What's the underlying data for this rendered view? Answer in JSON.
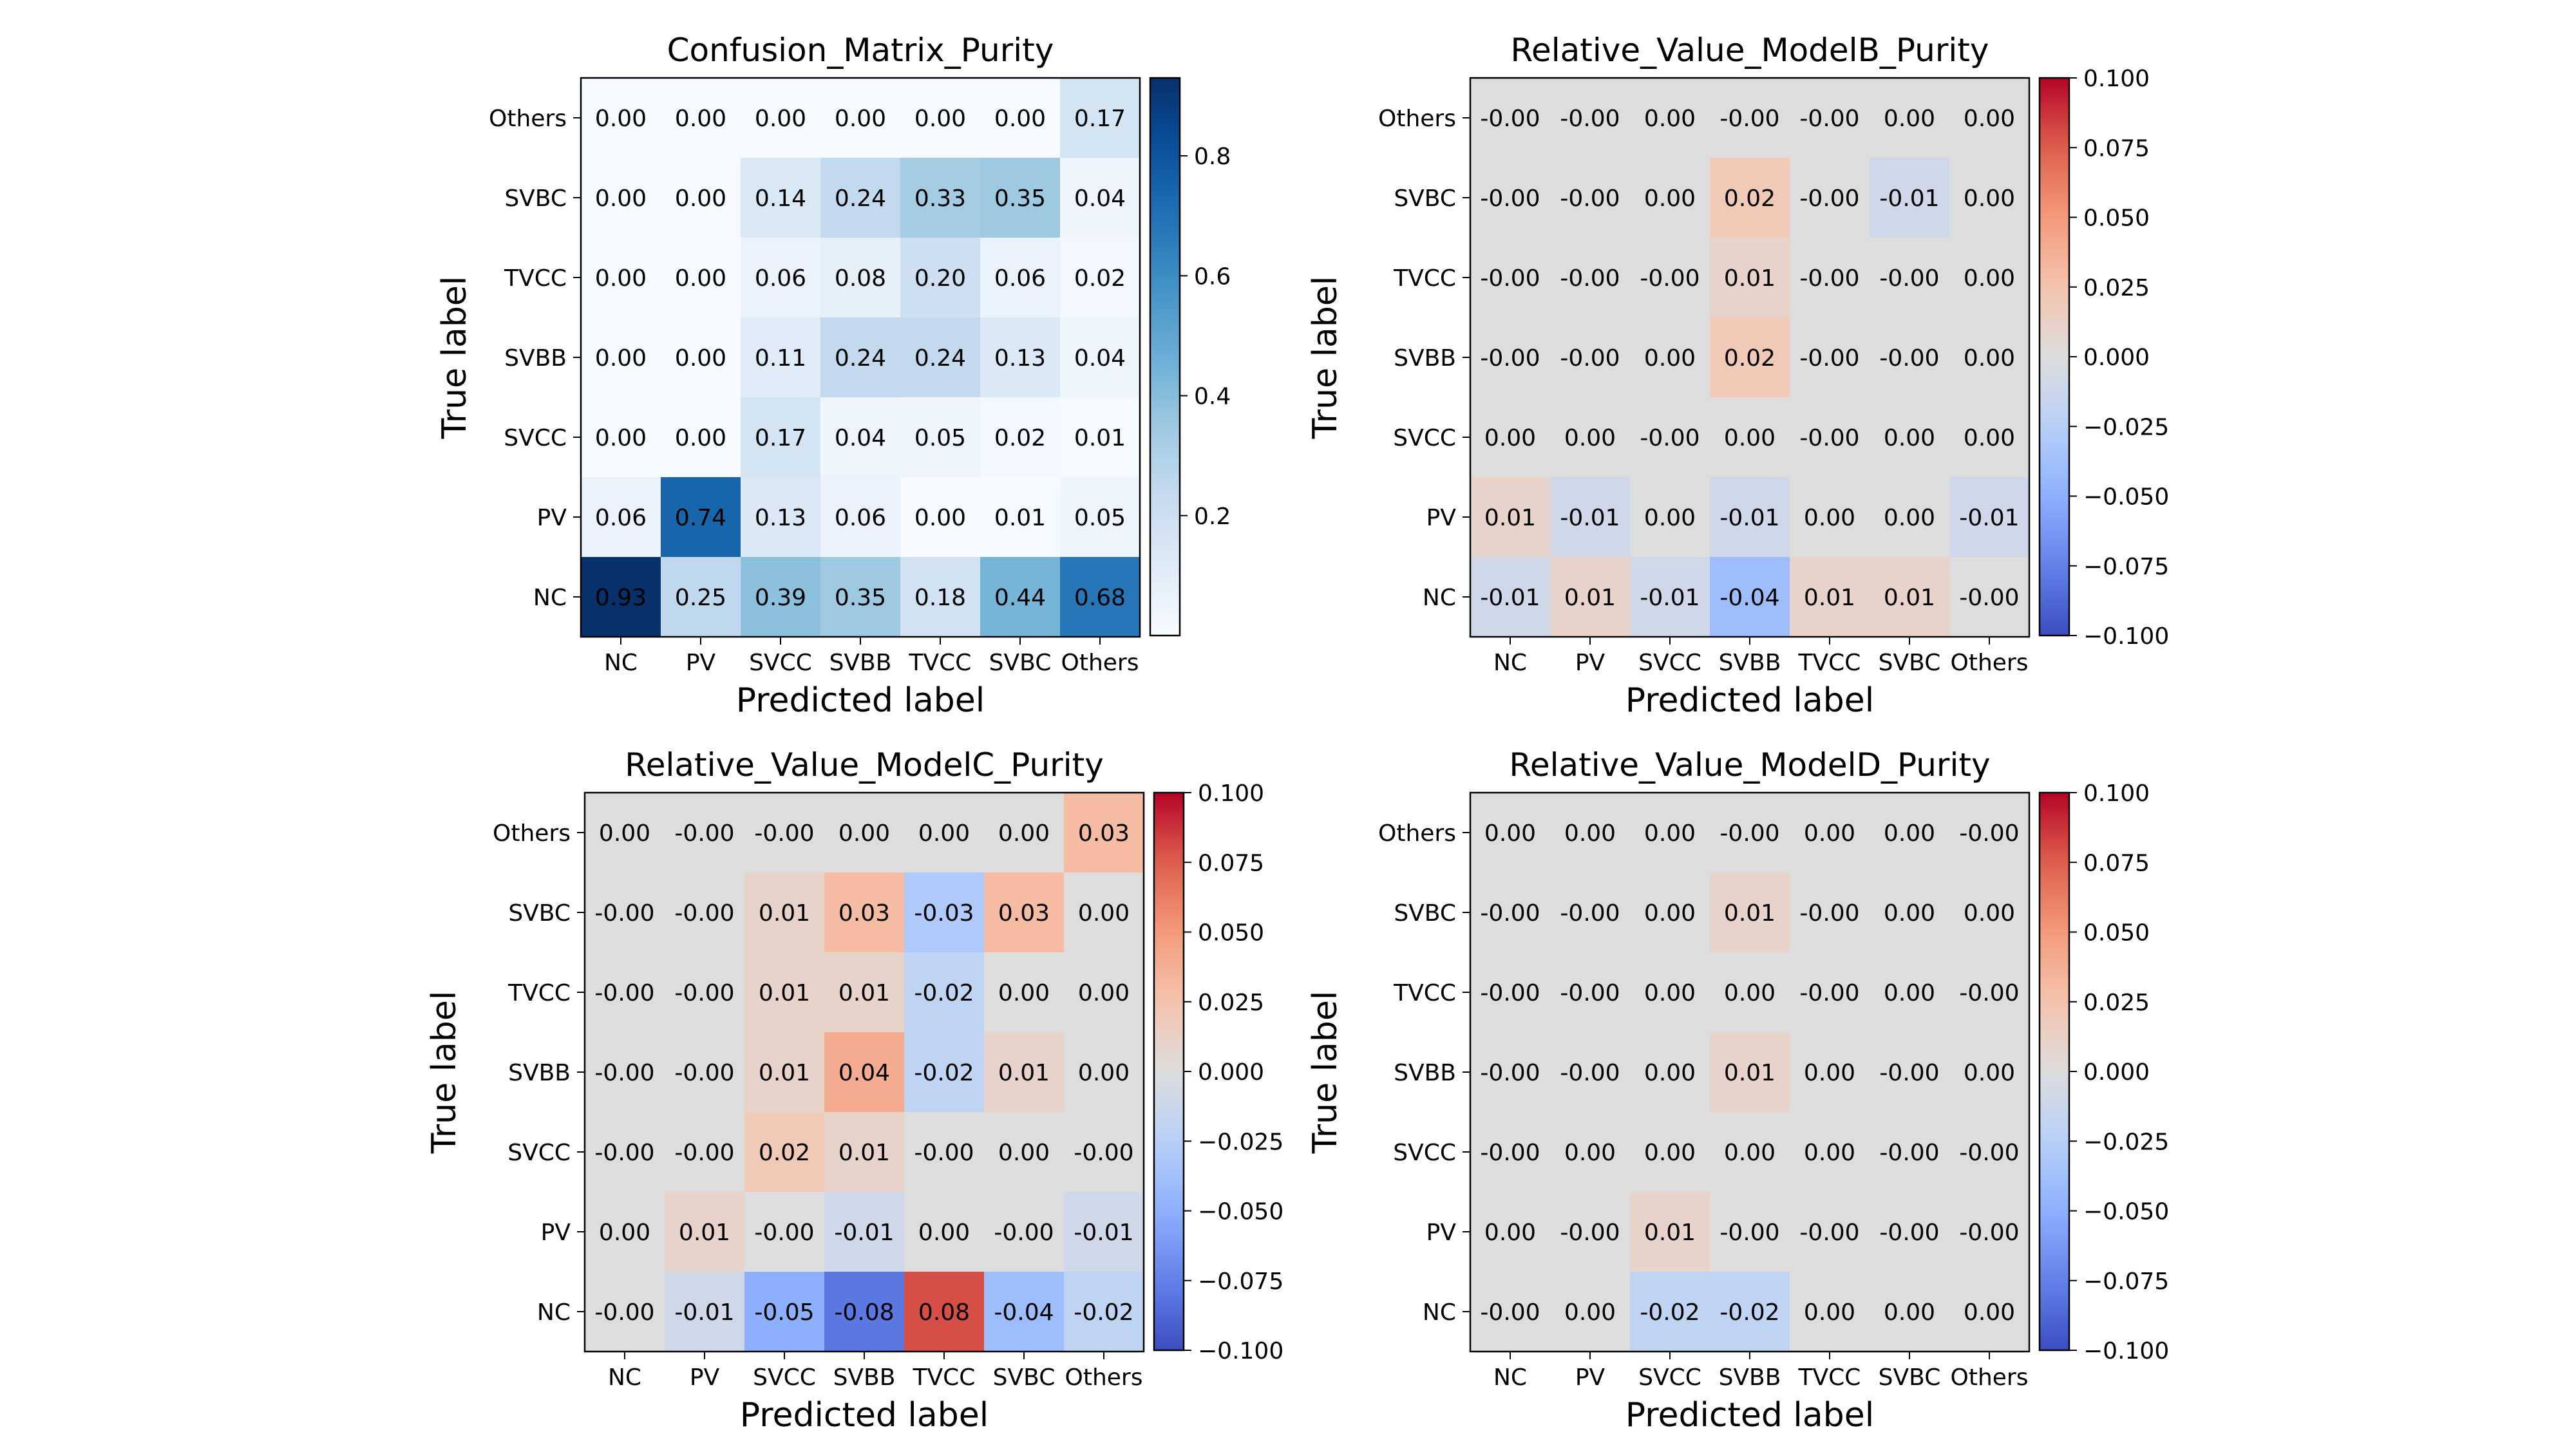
{
  "chart_data": [
    {
      "type": "heatmap",
      "title": "Confusion_Matrix_Purity",
      "xlabel": "Predicted label",
      "ylabel": "True label",
      "x_categories": [
        "NC",
        "PV",
        "SVCC",
        "SVBB",
        "TVCC",
        "SVBC",
        "Others"
      ],
      "y_categories": [
        "Others",
        "SVBC",
        "TVCC",
        "SVBB",
        "SVCC",
        "PV",
        "NC"
      ],
      "values": [
        [
          "0.00",
          "0.00",
          "0.00",
          "0.00",
          "0.00",
          "0.00",
          "0.17"
        ],
        [
          "0.00",
          "0.00",
          "0.14",
          "0.24",
          "0.33",
          "0.35",
          "0.04"
        ],
        [
          "0.00",
          "0.00",
          "0.06",
          "0.08",
          "0.20",
          "0.06",
          "0.02"
        ],
        [
          "0.00",
          "0.00",
          "0.11",
          "0.24",
          "0.24",
          "0.13",
          "0.04"
        ],
        [
          "0.00",
          "0.00",
          "0.17",
          "0.04",
          "0.05",
          "0.02",
          "0.01"
        ],
        [
          "0.06",
          "0.74",
          "0.13",
          "0.06",
          "0.00",
          "0.01",
          "0.05"
        ],
        [
          "0.93",
          "0.25",
          "0.39",
          "0.35",
          "0.18",
          "0.44",
          "0.68"
        ]
      ],
      "colormap": "Blues",
      "color_range": [
        0.0,
        0.93
      ],
      "colorbar_ticks": [
        "0.8",
        "0.6",
        "0.4",
        "0.2"
      ],
      "colorbar_tick_values": [
        0.8,
        0.6,
        0.4,
        0.2
      ]
    },
    {
      "type": "heatmap",
      "title": "Relative_Value_ModelB_Purity",
      "xlabel": "Predicted label",
      "ylabel": "True label",
      "x_categories": [
        "NC",
        "PV",
        "SVCC",
        "SVBB",
        "TVCC",
        "SVBC",
        "Others"
      ],
      "y_categories": [
        "Others",
        "SVBC",
        "TVCC",
        "SVBB",
        "SVCC",
        "PV",
        "NC"
      ],
      "values": [
        [
          "-0.00",
          "-0.00",
          "0.00",
          "-0.00",
          "-0.00",
          "0.00",
          "0.00"
        ],
        [
          "-0.00",
          "-0.00",
          "0.00",
          "0.02",
          "-0.00",
          "-0.01",
          "0.00"
        ],
        [
          "-0.00",
          "-0.00",
          "-0.00",
          "0.01",
          "-0.00",
          "-0.00",
          "0.00"
        ],
        [
          "-0.00",
          "-0.00",
          "0.00",
          "0.02",
          "-0.00",
          "-0.00",
          "0.00"
        ],
        [
          "0.00",
          "0.00",
          "-0.00",
          "0.00",
          "-0.00",
          "0.00",
          "0.00"
        ],
        [
          "0.01",
          "-0.01",
          "0.00",
          "-0.01",
          "0.00",
          "0.00",
          "-0.01"
        ],
        [
          "-0.01",
          "0.01",
          "-0.01",
          "-0.04",
          "0.01",
          "0.01",
          "-0.00"
        ]
      ],
      "colormap": "coolwarm",
      "color_range": [
        -0.1,
        0.1
      ],
      "colorbar_ticks": [
        "0.100",
        "0.075",
        "0.050",
        "0.025",
        "0.000",
        "−0.025",
        "−0.050",
        "−0.075",
        "−0.100"
      ],
      "colorbar_tick_values": [
        0.1,
        0.075,
        0.05,
        0.025,
        0.0,
        -0.025,
        -0.05,
        -0.075,
        -0.1
      ]
    },
    {
      "type": "heatmap",
      "title": "Relative_Value_ModelC_Purity",
      "xlabel": "Predicted label",
      "ylabel": "True label",
      "x_categories": [
        "NC",
        "PV",
        "SVCC",
        "SVBB",
        "TVCC",
        "SVBC",
        "Others"
      ],
      "y_categories": [
        "Others",
        "SVBC",
        "TVCC",
        "SVBB",
        "SVCC",
        "PV",
        "NC"
      ],
      "values": [
        [
          "0.00",
          "-0.00",
          "-0.00",
          "0.00",
          "0.00",
          "0.00",
          "0.03"
        ],
        [
          "-0.00",
          "-0.00",
          "0.01",
          "0.03",
          "-0.03",
          "0.03",
          "0.00"
        ],
        [
          "-0.00",
          "-0.00",
          "0.01",
          "0.01",
          "-0.02",
          "0.00",
          "0.00"
        ],
        [
          "-0.00",
          "-0.00",
          "0.01",
          "0.04",
          "-0.02",
          "0.01",
          "0.00"
        ],
        [
          "-0.00",
          "-0.00",
          "0.02",
          "0.01",
          "-0.00",
          "0.00",
          "-0.00"
        ],
        [
          "0.00",
          "0.01",
          "-0.00",
          "-0.01",
          "0.00",
          "-0.00",
          "-0.01"
        ],
        [
          "-0.00",
          "-0.01",
          "-0.05",
          "-0.08",
          "0.08",
          "-0.04",
          "-0.02"
        ]
      ],
      "colormap": "coolwarm",
      "color_range": [
        -0.1,
        0.1
      ],
      "colorbar_ticks": [
        "0.100",
        "0.075",
        "0.050",
        "0.025",
        "0.000",
        "−0.025",
        "−0.050",
        "−0.075",
        "−0.100"
      ],
      "colorbar_tick_values": [
        0.1,
        0.075,
        0.05,
        0.025,
        0.0,
        -0.025,
        -0.05,
        -0.075,
        -0.1
      ]
    },
    {
      "type": "heatmap",
      "title": "Relative_Value_ModelD_Purity",
      "xlabel": "Predicted label",
      "ylabel": "True label",
      "x_categories": [
        "NC",
        "PV",
        "SVCC",
        "SVBB",
        "TVCC",
        "SVBC",
        "Others"
      ],
      "y_categories": [
        "Others",
        "SVBC",
        "TVCC",
        "SVBB",
        "SVCC",
        "PV",
        "NC"
      ],
      "values": [
        [
          "0.00",
          "0.00",
          "0.00",
          "-0.00",
          "0.00",
          "0.00",
          "-0.00"
        ],
        [
          "-0.00",
          "-0.00",
          "0.00",
          "0.01",
          "-0.00",
          "0.00",
          "0.00"
        ],
        [
          "-0.00",
          "-0.00",
          "0.00",
          "0.00",
          "-0.00",
          "0.00",
          "-0.00"
        ],
        [
          "-0.00",
          "-0.00",
          "0.00",
          "0.01",
          "0.00",
          "-0.00",
          "0.00"
        ],
        [
          "-0.00",
          "0.00",
          "0.00",
          "0.00",
          "0.00",
          "-0.00",
          "-0.00"
        ],
        [
          "0.00",
          "-0.00",
          "0.01",
          "-0.00",
          "-0.00",
          "-0.00",
          "-0.00"
        ],
        [
          "-0.00",
          "0.00",
          "-0.02",
          "-0.02",
          "0.00",
          "0.00",
          "0.00"
        ]
      ],
      "colormap": "coolwarm",
      "color_range": [
        -0.1,
        0.1
      ],
      "colorbar_ticks": [
        "0.100",
        "0.075",
        "0.050",
        "0.025",
        "0.000",
        "−0.025",
        "−0.050",
        "−0.075",
        "−0.100"
      ],
      "colorbar_tick_values": [
        0.1,
        0.075,
        0.05,
        0.025,
        0.0,
        -0.025,
        -0.05,
        -0.075,
        -0.1
      ]
    }
  ]
}
